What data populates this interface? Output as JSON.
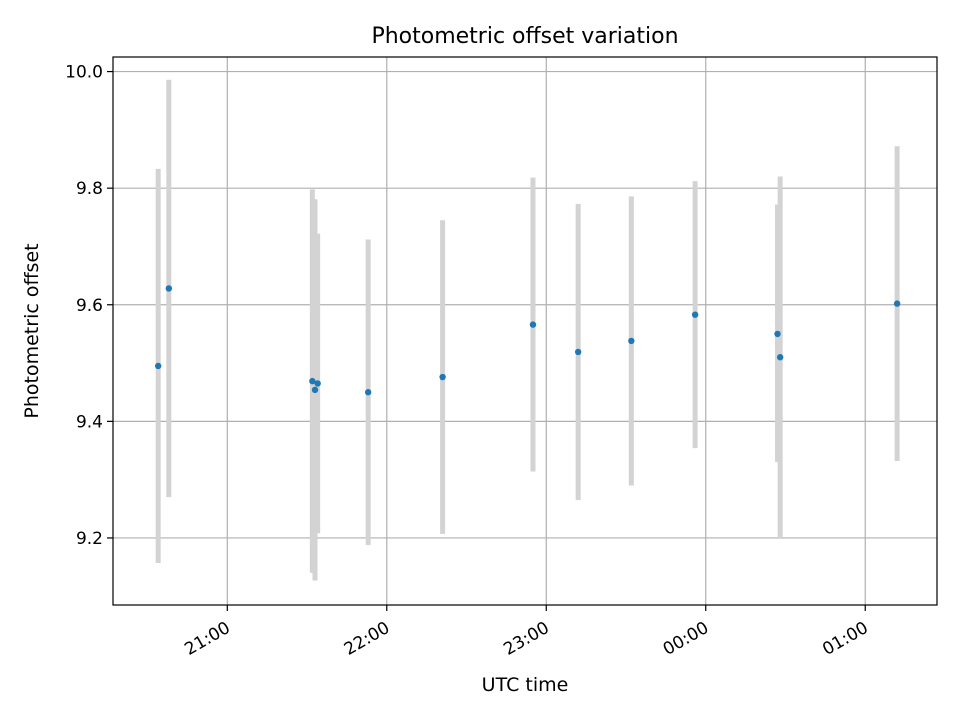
{
  "chart_data": {
    "type": "scatter",
    "title": "Photometric offset variation",
    "xlabel": "UTC time",
    "ylabel": "Photometric offset",
    "x_unit": "UTC time (hh:mm), 20:20 to 01:27 across midnight",
    "xlim": [
      "20:17",
      "01:27"
    ],
    "ylim": [
      9.085,
      10.025
    ],
    "grid": true,
    "x_ticks": [
      "21:00",
      "22:00",
      "23:00",
      "00:00",
      "01:00"
    ],
    "y_ticks": [
      "9.2",
      "9.4",
      "9.6",
      "9.8",
      "10.0"
    ],
    "marker_color": "#1f77b4",
    "errorbar_color": "#d3d3d3",
    "points": [
      {
        "x": "20:34",
        "y": 9.495,
        "ylo": 9.157,
        "yhi": 9.833
      },
      {
        "x": "20:38",
        "y": 9.628,
        "ylo": 9.27,
        "yhi": 9.986
      },
      {
        "x": "21:32",
        "y": 9.469,
        "ylo": 9.14,
        "yhi": 9.798
      },
      {
        "x": "21:33",
        "y": 9.454,
        "ylo": 9.127,
        "yhi": 9.781
      },
      {
        "x": "21:34",
        "y": 9.465,
        "ylo": 9.208,
        "yhi": 9.722
      },
      {
        "x": "21:53",
        "y": 9.45,
        "ylo": 9.188,
        "yhi": 9.712
      },
      {
        "x": "22:21",
        "y": 9.476,
        "ylo": 9.207,
        "yhi": 9.745
      },
      {
        "x": "22:55",
        "y": 9.566,
        "ylo": 9.314,
        "yhi": 9.818
      },
      {
        "x": "23:12",
        "y": 9.519,
        "ylo": 9.265,
        "yhi": 9.773
      },
      {
        "x": "23:32",
        "y": 9.538,
        "ylo": 9.29,
        "yhi": 9.786
      },
      {
        "x": "23:56",
        "y": 9.583,
        "ylo": 9.354,
        "yhi": 9.812
      },
      {
        "x": "00:27",
        "y": 9.55,
        "ylo": 9.33,
        "yhi": 9.772
      },
      {
        "x": "00:28",
        "y": 9.51,
        "ylo": 9.2,
        "yhi": 9.82
      },
      {
        "x": "01:12",
        "y": 9.602,
        "ylo": 9.332,
        "yhi": 9.872
      }
    ]
  }
}
